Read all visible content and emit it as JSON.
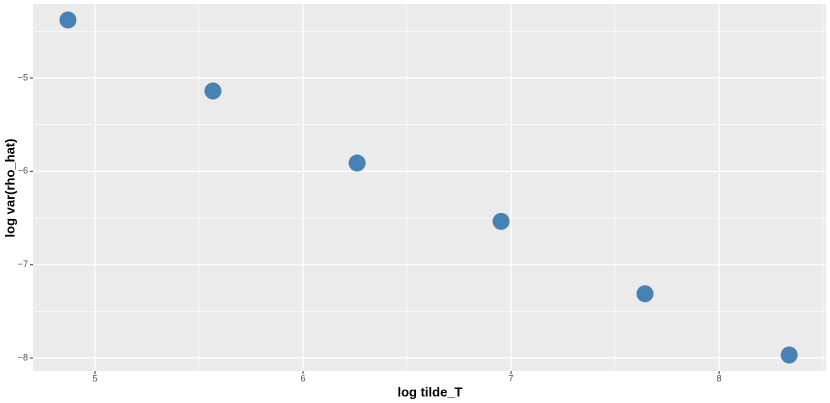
{
  "chart_data": {
    "type": "scatter",
    "x_label": "log tilde_T",
    "y_label": "log var(rho_hat)",
    "x": [
      4.87,
      5.567,
      6.26,
      6.952,
      7.644,
      8.337
    ],
    "values": [
      -4.378,
      -5.139,
      -5.911,
      -6.536,
      -7.311,
      -7.968
    ],
    "color": "#4682b4",
    "xlim": [
      4.702,
      8.514
    ],
    "ylim": [
      -8.139,
      -4.207
    ],
    "xticks": [
      5,
      6,
      7,
      8
    ],
    "yticks": [
      {
        "value": -5,
        "label": "−5"
      },
      {
        "value": -6,
        "label": "−6"
      },
      {
        "value": -7,
        "label": "−7"
      },
      {
        "value": -8,
        "label": "−8"
      }
    ],
    "x_minor_ticks": [
      5.5,
      6.5,
      7.5,
      8.5
    ],
    "y_minor_ticks": [
      -4.5,
      -5.5,
      -6.5,
      -7.5
    ],
    "grid": true
  }
}
